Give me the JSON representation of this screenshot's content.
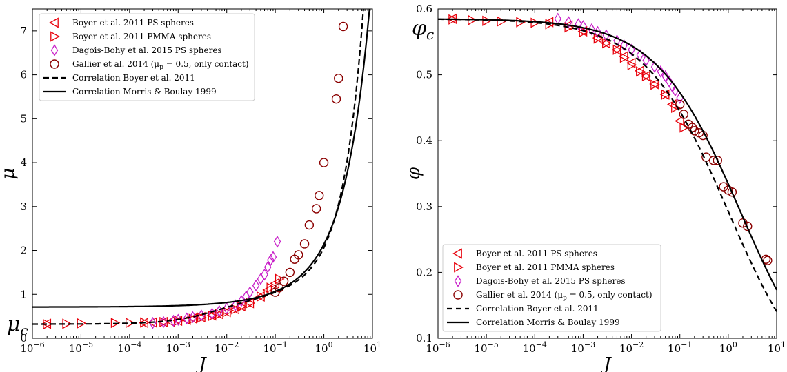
{
  "chart_data": [
    {
      "type": "scatter",
      "xscale": "log",
      "xlim": [
        1e-06,
        10
      ],
      "ylim": [
        0,
        7.5
      ],
      "xlabel": "J",
      "ylabel": "μ",
      "yticks": [
        0,
        1,
        2,
        3,
        4,
        5,
        6,
        7
      ],
      "xticks": [
        {
          "v": 1e-06,
          "b": "10",
          "e": "−6"
        },
        {
          "v": 1e-05,
          "b": "10",
          "e": "−5"
        },
        {
          "v": 0.0001,
          "b": "10",
          "e": "−4"
        },
        {
          "v": 0.001,
          "b": "10",
          "e": "−3"
        },
        {
          "v": 0.01,
          "b": "10",
          "e": "−2"
        },
        {
          "v": 0.1,
          "b": "10",
          "e": "−1"
        },
        {
          "v": 1,
          "b": "10",
          "e": "0"
        },
        {
          "v": 10,
          "b": "10",
          "e": "1"
        }
      ],
      "annotation": {
        "text": "μc",
        "y": 0.32
      },
      "legend_position": "top-left",
      "series": [
        {
          "name": "Boyer et al. 2011 PS spheres",
          "marker": "tri-left",
          "color": "#e8000b",
          "fill": false,
          "points": [
            [
              2e-06,
              0.33
            ],
            [
              0.0002,
              0.35
            ],
            [
              0.0003,
              0.36
            ],
            [
              0.0005,
              0.37
            ],
            [
              0.0007,
              0.38
            ],
            [
              0.001,
              0.4
            ],
            [
              0.0015,
              0.42
            ],
            [
              0.002,
              0.45
            ],
            [
              0.003,
              0.48
            ],
            [
              0.005,
              0.52
            ],
            [
              0.007,
              0.55
            ],
            [
              0.01,
              0.6
            ],
            [
              0.015,
              0.66
            ],
            [
              0.02,
              0.73
            ],
            [
              0.03,
              0.8
            ],
            [
              0.05,
              0.95
            ],
            [
              0.07,
              1.1
            ],
            [
              0.1,
              1.25
            ]
          ]
        },
        {
          "name": "Boyer et al. 2011 PMMA spheres",
          "marker": "tri-right",
          "color": "#e8000b",
          "fill": false,
          "points": [
            [
              2e-06,
              0.32
            ],
            [
              5e-06,
              0.33
            ],
            [
              1e-05,
              0.34
            ],
            [
              5e-05,
              0.35
            ],
            [
              0.0001,
              0.35
            ],
            [
              0.0002,
              0.36
            ],
            [
              0.0005,
              0.37
            ],
            [
              0.001,
              0.4
            ],
            [
              0.002,
              0.44
            ],
            [
              0.003,
              0.47
            ],
            [
              0.005,
              0.51
            ],
            [
              0.007,
              0.55
            ],
            [
              0.01,
              0.6
            ],
            [
              0.015,
              0.66
            ],
            [
              0.02,
              0.72
            ],
            [
              0.03,
              0.8
            ],
            [
              0.05,
              0.95
            ],
            [
              0.08,
              1.15
            ],
            [
              0.12,
              1.35
            ]
          ]
        },
        {
          "name": "Dagois-Bohy et al. 2015 PS spheres",
          "marker": "diamond",
          "color": "#c81ec8",
          "fill": false,
          "points": [
            [
              0.0003,
              0.35
            ],
            [
              0.0005,
              0.37
            ],
            [
              0.0008,
              0.4
            ],
            [
              0.001,
              0.42
            ],
            [
              0.0015,
              0.45
            ],
            [
              0.002,
              0.48
            ],
            [
              0.003,
              0.52
            ],
            [
              0.005,
              0.56
            ],
            [
              0.007,
              0.62
            ],
            [
              0.01,
              0.68
            ],
            [
              0.015,
              0.75
            ],
            [
              0.02,
              0.85
            ],
            [
              0.025,
              0.95
            ],
            [
              0.03,
              1.05
            ],
            [
              0.04,
              1.2
            ],
            [
              0.05,
              1.35
            ],
            [
              0.06,
              1.45
            ],
            [
              0.07,
              1.62
            ],
            [
              0.08,
              1.78
            ],
            [
              0.09,
              1.85
            ],
            [
              0.11,
              2.2
            ]
          ]
        },
        {
          "name": "Gallier et al. 2014 (μp = 0.5, only contact)",
          "marker": "circle",
          "color": "#8b0000",
          "fill": false,
          "points": [
            [
              0.1,
              1.05
            ],
            [
              0.12,
              1.15
            ],
            [
              0.15,
              1.3
            ],
            [
              0.2,
              1.5
            ],
            [
              0.25,
              1.8
            ],
            [
              0.3,
              1.9
            ],
            [
              0.4,
              2.15
            ],
            [
              0.5,
              2.58
            ],
            [
              0.7,
              2.95
            ],
            [
              0.8,
              3.25
            ],
            [
              1.0,
              4.0
            ],
            [
              1.8,
              5.45
            ],
            [
              2.0,
              5.92
            ],
            [
              2.5,
              7.1
            ]
          ]
        },
        {
          "name": "Correlation Boyer et al. 2011",
          "type": "line",
          "style": "dashed",
          "color": "#000000",
          "curve": "boyer-mu"
        },
        {
          "name": "Correlation Morris & Boulay 1999",
          "type": "line",
          "style": "solid",
          "color": "#000000",
          "curve": "morris-mu"
        }
      ]
    },
    {
      "type": "scatter",
      "xscale": "log",
      "xlim": [
        1e-06,
        10
      ],
      "ylim": [
        0.1,
        0.6
      ],
      "xlabel": "J",
      "ylabel": "φ",
      "yticks": [
        0.1,
        0.2,
        0.3,
        0.4,
        0.5,
        0.6
      ],
      "xticks": [
        {
          "v": 1e-06,
          "b": "10",
          "e": "−6"
        },
        {
          "v": 1e-05,
          "b": "10",
          "e": "−5"
        },
        {
          "v": 0.0001,
          "b": "10",
          "e": "−4"
        },
        {
          "v": 0.001,
          "b": "10",
          "e": "−3"
        },
        {
          "v": 0.01,
          "b": "10",
          "e": "−2"
        },
        {
          "v": 0.1,
          "b": "10",
          "e": "−1"
        },
        {
          "v": 1,
          "b": "10",
          "e": "0"
        },
        {
          "v": 10,
          "b": "10",
          "e": "1"
        }
      ],
      "annotation": {
        "text": "φc",
        "y": 0.575
      },
      "legend_position": "bottom-left",
      "series": [
        {
          "name": "Boyer et al. 2011 PS spheres",
          "marker": "tri-left",
          "color": "#e8000b",
          "fill": false,
          "points": [
            [
              2e-06,
              0.585
            ],
            [
              0.0002,
              0.58
            ],
            [
              0.0005,
              0.575
            ],
            [
              0.001,
              0.566
            ],
            [
              0.002,
              0.556
            ],
            [
              0.003,
              0.548
            ],
            [
              0.005,
              0.538
            ],
            [
              0.007,
              0.528
            ],
            [
              0.01,
              0.518
            ],
            [
              0.015,
              0.506
            ],
            [
              0.02,
              0.498
            ],
            [
              0.03,
              0.486
            ],
            [
              0.05,
              0.47
            ],
            [
              0.07,
              0.455
            ],
            [
              0.1,
              0.43
            ]
          ]
        },
        {
          "name": "Boyer et al. 2011 PMMA spheres",
          "marker": "tri-right",
          "color": "#e8000b",
          "fill": false,
          "points": [
            [
              2e-06,
              0.584
            ],
            [
              5e-06,
              0.583
            ],
            [
              1e-05,
              0.582
            ],
            [
              2e-05,
              0.581
            ],
            [
              5e-05,
              0.58
            ],
            [
              0.0001,
              0.579
            ],
            [
              0.0002,
              0.577
            ],
            [
              0.0005,
              0.572
            ],
            [
              0.001,
              0.565
            ],
            [
              0.002,
              0.555
            ],
            [
              0.003,
              0.548
            ],
            [
              0.005,
              0.538
            ],
            [
              0.007,
              0.526
            ],
            [
              0.01,
              0.515
            ],
            [
              0.015,
              0.505
            ],
            [
              0.02,
              0.498
            ],
            [
              0.03,
              0.485
            ],
            [
              0.05,
              0.47
            ],
            [
              0.08,
              0.45
            ],
            [
              0.12,
              0.42
            ]
          ]
        },
        {
          "name": "Dagois-Bohy et al. 2015 PS spheres",
          "marker": "diamond",
          "color": "#c81ec8",
          "fill": false,
          "points": [
            [
              0.0003,
              0.585
            ],
            [
              0.0005,
              0.58
            ],
            [
              0.0008,
              0.577
            ],
            [
              0.001,
              0.574
            ],
            [
              0.0015,
              0.569
            ],
            [
              0.002,
              0.565
            ],
            [
              0.003,
              0.56
            ],
            [
              0.005,
              0.552
            ],
            [
              0.007,
              0.545
            ],
            [
              0.01,
              0.538
            ],
            [
              0.015,
              0.53
            ],
            [
              0.02,
              0.522
            ],
            [
              0.03,
              0.512
            ],
            [
              0.04,
              0.505
            ],
            [
              0.05,
              0.498
            ],
            [
              0.06,
              0.49
            ],
            [
              0.07,
              0.482
            ],
            [
              0.08,
              0.476
            ],
            [
              0.1,
              0.465
            ]
          ]
        },
        {
          "name": "Gallier et al. 2014 (μp = 0.5, only contact)",
          "marker": "circle",
          "color": "#8b0000",
          "fill": false,
          "points": [
            [
              0.1,
              0.455
            ],
            [
              0.12,
              0.44
            ],
            [
              0.15,
              0.425
            ],
            [
              0.18,
              0.42
            ],
            [
              0.2,
              0.415
            ],
            [
              0.25,
              0.412
            ],
            [
              0.3,
              0.408
            ],
            [
              0.35,
              0.375
            ],
            [
              0.5,
              0.37
            ],
            [
              0.6,
              0.37
            ],
            [
              0.8,
              0.33
            ],
            [
              1.0,
              0.325
            ],
            [
              1.2,
              0.322
            ],
            [
              2.0,
              0.275
            ],
            [
              2.5,
              0.27
            ],
            [
              6.0,
              0.22
            ],
            [
              6.5,
              0.218
            ]
          ]
        },
        {
          "name": "Correlation Boyer et al. 2011",
          "type": "line",
          "style": "dashed",
          "color": "#000000",
          "curve": "boyer-phi"
        },
        {
          "name": "Correlation Morris & Boulay 1999",
          "type": "line",
          "style": "solid",
          "color": "#000000",
          "curve": "morris-phi"
        }
      ]
    }
  ]
}
